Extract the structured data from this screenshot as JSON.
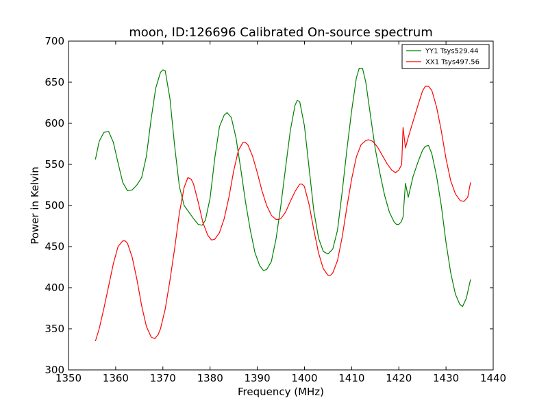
{
  "chart_data": {
    "type": "line",
    "title": "moon, ID:126696 Calibrated On-source spectrum",
    "xlabel": "Frequency (MHz)",
    "ylabel": "Power in Kelvin",
    "xlim": [
      1350,
      1440
    ],
    "ylim": [
      300,
      700
    ],
    "xticks": [
      1350,
      1360,
      1370,
      1380,
      1390,
      1400,
      1410,
      1420,
      1430,
      1440
    ],
    "yticks": [
      300,
      350,
      400,
      450,
      500,
      550,
      600,
      650,
      700
    ],
    "grid": false,
    "legend_position": "top-right",
    "series": [
      {
        "name": "YY1 Tsys529.44",
        "color": "#008000",
        "x": [
          1355.7,
          1356.5,
          1357.5,
          1358.5,
          1359.5,
          1360.5,
          1361.5,
          1362.5,
          1363.5,
          1364.5,
          1365.5,
          1366.5,
          1367.5,
          1368.5,
          1369.5,
          1370.0,
          1370.5,
          1371.5,
          1372.5,
          1373.5,
          1374.5,
          1375.5,
          1376.5,
          1377.5,
          1378.3,
          1379.0,
          1380.0,
          1381.0,
          1382.0,
          1383.0,
          1383.6,
          1384.5,
          1385.5,
          1386.5,
          1387.5,
          1388.5,
          1389.5,
          1390.5,
          1391.3,
          1392.0,
          1393.0,
          1394.0,
          1395.0,
          1396.0,
          1397.0,
          1398.0,
          1398.5,
          1399.0,
          1400.0,
          1401.0,
          1402.0,
          1403.0,
          1404.0,
          1405.0,
          1406.0,
          1407.0,
          1408.0,
          1409.0,
          1410.0,
          1411.0,
          1411.6,
          1412.3,
          1413.0,
          1414.0,
          1415.0,
          1416.0,
          1417.0,
          1418.0,
          1419.0,
          1419.5,
          1420.0,
          1420.5,
          1420.9,
          1421.4,
          1422.0,
          1423.0,
          1424.0,
          1425.0,
          1425.6,
          1426.3,
          1427.0,
          1428.0,
          1429.0,
          1430.0,
          1431.0,
          1432.0,
          1432.9,
          1433.5,
          1434.3,
          1435.2
        ],
        "y": [
          556,
          578,
          589,
          590,
          577,
          552,
          528,
          518,
          519,
          525,
          534,
          560,
          605,
          643,
          662,
          665,
          664,
          630,
          572,
          523,
          500,
          492,
          484,
          477,
          476,
          482,
          509,
          558,
          596,
          610,
          613,
          607,
          582,
          545,
          505,
          471,
          443,
          427,
          421,
          422,
          432,
          460,
          500,
          546,
          591,
          622,
          628,
          626,
          597,
          545,
          493,
          460,
          444,
          441,
          447,
          470,
          517,
          568,
          615,
          655,
          667,
          667,
          650,
          609,
          569,
          539,
          512,
          492,
          480,
          477,
          477,
          480,
          486,
          527,
          510,
          535,
          552,
          567,
          572,
          573,
          563,
          536,
          500,
          455,
          418,
          392,
          380,
          377,
          387,
          410
        ]
      },
      {
        "name": "XX1 Tsys497.56",
        "color": "#ff0000",
        "x": [
          1355.7,
          1356.5,
          1357.5,
          1358.5,
          1359.5,
          1360.5,
          1361.5,
          1362.0,
          1362.5,
          1363.5,
          1364.5,
          1365.5,
          1366.5,
          1367.5,
          1368.3,
          1369.0,
          1369.5,
          1370.5,
          1371.5,
          1372.5,
          1373.5,
          1374.5,
          1375.3,
          1376.0,
          1376.5,
          1377.5,
          1378.5,
          1379.5,
          1380.3,
          1381.0,
          1382.0,
          1383.0,
          1384.0,
          1385.0,
          1386.0,
          1387.0,
          1387.4,
          1388.0,
          1389.0,
          1390.0,
          1391.0,
          1392.0,
          1393.0,
          1394.0,
          1394.5,
          1395.0,
          1396.0,
          1397.0,
          1398.0,
          1399.0,
          1399.5,
          1400.0,
          1401.0,
          1402.0,
          1403.0,
          1404.0,
          1405.0,
          1405.5,
          1406.0,
          1407.0,
          1408.0,
          1409.0,
          1410.0,
          1411.0,
          1412.0,
          1413.0,
          1413.6,
          1414.5,
          1415.5,
          1416.5,
          1417.5,
          1418.5,
          1419.3,
          1420.0,
          1420.6,
          1420.9,
          1421.4,
          1422.0,
          1423.0,
          1424.0,
          1425.0,
          1425.6,
          1426.3,
          1427.0,
          1428.0,
          1429.0,
          1430.0,
          1431.0,
          1432.0,
          1433.0,
          1433.8,
          1434.6,
          1435.2
        ],
        "y": [
          335,
          350,
          375,
          402,
          429,
          450,
          457,
          457,
          454,
          437,
          410,
          378,
          353,
          340,
          338,
          343,
          350,
          374,
          409,
          448,
          491,
          522,
          534,
          532,
          526,
          504,
          479,
          464,
          458,
          459,
          467,
          484,
          510,
          542,
          567,
          577,
          577,
          574,
          560,
          540,
          518,
          500,
          488,
          483,
          483,
          484,
          492,
          505,
          517,
          526,
          526,
          523,
          501,
          470,
          442,
          423,
          415,
          415,
          418,
          433,
          462,
          498,
          532,
          559,
          574,
          579,
          580,
          578,
          571,
          561,
          551,
          543,
          540,
          543,
          550,
          595,
          570,
          583,
          602,
          621,
          639,
          645,
          645,
          640,
          620,
          591,
          557,
          530,
          514,
          506,
          505,
          510,
          528
        ]
      }
    ]
  }
}
